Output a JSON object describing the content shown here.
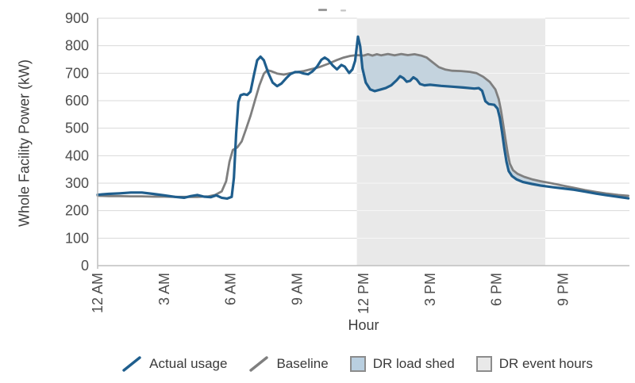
{
  "y_axis": {
    "title": "Whole Facility Power (kW)"
  },
  "x_axis": {
    "title": "Hour"
  },
  "legend": [
    {
      "label": "Actual usage",
      "swatch": "line",
      "color": "#1f5e8d"
    },
    {
      "label": "Baseline",
      "swatch": "line",
      "color": "#7f7f7f"
    },
    {
      "label": "DR load shed",
      "swatch": "square",
      "color": "#b9cfe0"
    },
    {
      "label": "DR event hours",
      "swatch": "square",
      "color": "#e9e9e9"
    }
  ],
  "colors": {
    "actual_line": "#1f5e8d",
    "baseline_line": "#7f7f7f",
    "load_shed_fill": "#c4d3de",
    "event_fill": "#e9e9e9",
    "gridline": "#d9d9d9",
    "gridline_on_event": "#f8f8f8",
    "axis_line": "#bfbfbf",
    "tick_text": "#4d4d4d",
    "legend_swatch_border": "#8c8c8c"
  },
  "chart_data": {
    "type": "line",
    "title": "",
    "xlabel": "Hour",
    "ylabel": "Whole Facility Power (kW)",
    "xlim": [
      0,
      24
    ],
    "ylim": [
      0,
      900
    ],
    "grid": "horizontal",
    "legend_position": "bottom",
    "y_ticks": [
      0,
      100,
      200,
      300,
      400,
      500,
      600,
      700,
      800,
      900
    ],
    "x_ticks": [
      {
        "h": 0,
        "label": "12 AM"
      },
      {
        "h": 3,
        "label": "3 AM"
      },
      {
        "h": 6,
        "label": "6 AM"
      },
      {
        "h": 9,
        "label": "9 AM"
      },
      {
        "h": 12,
        "label": "12 PM"
      },
      {
        "h": 15,
        "label": "3 PM"
      },
      {
        "h": 18,
        "label": "6 PM"
      },
      {
        "h": 21,
        "label": "9 PM"
      }
    ],
    "dr_event_hours": {
      "name": "DR event hours",
      "start_hour": 11.7,
      "end_hour": 20.2
    },
    "dr_load_shed": {
      "name": "DR load shed",
      "start_hour": 11.9,
      "end_hour": 20.2,
      "between": [
        "Baseline",
        "Actual usage"
      ]
    },
    "series": [
      {
        "name": "Actual usage",
        "color": "#1f5e8d",
        "width": 3.2,
        "points": [
          [
            0,
            258
          ],
          [
            0.5,
            261
          ],
          [
            1,
            263
          ],
          [
            1.5,
            266
          ],
          [
            2,
            266
          ],
          [
            2.5,
            261
          ],
          [
            3,
            256
          ],
          [
            3.5,
            250
          ],
          [
            3.9,
            247
          ],
          [
            4.2,
            253
          ],
          [
            4.5,
            257
          ],
          [
            4.8,
            251
          ],
          [
            5.1,
            249
          ],
          [
            5.35,
            256
          ],
          [
            5.6,
            247
          ],
          [
            5.85,
            244
          ],
          [
            6.05,
            250
          ],
          [
            6.15,
            320
          ],
          [
            6.25,
            480
          ],
          [
            6.35,
            595
          ],
          [
            6.45,
            620
          ],
          [
            6.6,
            624
          ],
          [
            6.75,
            621
          ],
          [
            6.9,
            633
          ],
          [
            7.05,
            692
          ],
          [
            7.2,
            747
          ],
          [
            7.35,
            760
          ],
          [
            7.5,
            747
          ],
          [
            7.7,
            701
          ],
          [
            7.9,
            666
          ],
          [
            8.1,
            653
          ],
          [
            8.3,
            663
          ],
          [
            8.5,
            681
          ],
          [
            8.7,
            697
          ],
          [
            8.9,
            704
          ],
          [
            9.1,
            704
          ],
          [
            9.3,
            699
          ],
          [
            9.5,
            696
          ],
          [
            9.7,
            707
          ],
          [
            9.9,
            724
          ],
          [
            10.1,
            749
          ],
          [
            10.25,
            757
          ],
          [
            10.4,
            749
          ],
          [
            10.6,
            729
          ],
          [
            10.8,
            714
          ],
          [
            11,
            730
          ],
          [
            11.15,
            724
          ],
          [
            11.35,
            701
          ],
          [
            11.5,
            714
          ],
          [
            11.62,
            745
          ],
          [
            11.75,
            833
          ],
          [
            11.85,
            798
          ],
          [
            11.95,
            718
          ],
          [
            12.1,
            666
          ],
          [
            12.3,
            641
          ],
          [
            12.5,
            635
          ],
          [
            12.75,
            640
          ],
          [
            13,
            646
          ],
          [
            13.25,
            656
          ],
          [
            13.5,
            675
          ],
          [
            13.65,
            689
          ],
          [
            13.8,
            682
          ],
          [
            13.95,
            669
          ],
          [
            14.1,
            672
          ],
          [
            14.25,
            685
          ],
          [
            14.4,
            677
          ],
          [
            14.55,
            661
          ],
          [
            14.75,
            656
          ],
          [
            15,
            658
          ],
          [
            15.5,
            654
          ],
          [
            16,
            651
          ],
          [
            16.5,
            648
          ],
          [
            17,
            644
          ],
          [
            17.2,
            646
          ],
          [
            17.35,
            636
          ],
          [
            17.5,
            598
          ],
          [
            17.65,
            588
          ],
          [
            17.9,
            585
          ],
          [
            18.05,
            571
          ],
          [
            18.15,
            538
          ],
          [
            18.25,
            486
          ],
          [
            18.35,
            428
          ],
          [
            18.45,
            378
          ],
          [
            18.55,
            344
          ],
          [
            18.7,
            326
          ],
          [
            18.9,
            314
          ],
          [
            19.2,
            304
          ],
          [
            19.6,
            297
          ],
          [
            20,
            291
          ],
          [
            20.5,
            286
          ],
          [
            21,
            281
          ],
          [
            21.5,
            276
          ],
          [
            22,
            269
          ],
          [
            22.5,
            262
          ],
          [
            23,
            256
          ],
          [
            23.5,
            250
          ],
          [
            23.95,
            245
          ]
        ]
      },
      {
        "name": "Baseline",
        "color": "#7f7f7f",
        "width": 2.8,
        "points": [
          [
            0,
            254
          ],
          [
            0.5,
            253
          ],
          [
            1,
            253
          ],
          [
            1.5,
            252
          ],
          [
            2,
            252
          ],
          [
            2.5,
            251
          ],
          [
            3,
            251
          ],
          [
            3.5,
            250
          ],
          [
            4,
            250
          ],
          [
            4.5,
            250
          ],
          [
            5,
            252
          ],
          [
            5.3,
            257
          ],
          [
            5.6,
            270
          ],
          [
            5.8,
            307
          ],
          [
            5.95,
            378
          ],
          [
            6.1,
            421
          ],
          [
            6.3,
            430
          ],
          [
            6.5,
            452
          ],
          [
            6.7,
            497
          ],
          [
            6.9,
            545
          ],
          [
            7.1,
            601
          ],
          [
            7.3,
            656
          ],
          [
            7.5,
            698
          ],
          [
            7.65,
            711
          ],
          [
            7.85,
            707
          ],
          [
            8.1,
            699
          ],
          [
            8.4,
            695
          ],
          [
            8.7,
            700
          ],
          [
            9,
            704
          ],
          [
            9.3,
            708
          ],
          [
            9.6,
            714
          ],
          [
            10,
            722
          ],
          [
            10.4,
            734
          ],
          [
            10.8,
            748
          ],
          [
            11.1,
            757
          ],
          [
            11.4,
            763
          ],
          [
            11.7,
            766
          ],
          [
            12,
            764
          ],
          [
            12.2,
            769
          ],
          [
            12.4,
            764
          ],
          [
            12.6,
            769
          ],
          [
            12.8,
            765
          ],
          [
            13.1,
            770
          ],
          [
            13.4,
            765
          ],
          [
            13.7,
            770
          ],
          [
            14,
            766
          ],
          [
            14.3,
            769
          ],
          [
            14.6,
            764
          ],
          [
            14.85,
            757
          ],
          [
            15.1,
            741
          ],
          [
            15.4,
            722
          ],
          [
            15.7,
            713
          ],
          [
            16,
            709
          ],
          [
            16.4,
            708
          ],
          [
            16.8,
            705
          ],
          [
            17.1,
            700
          ],
          [
            17.4,
            687
          ],
          [
            17.7,
            668
          ],
          [
            17.95,
            641
          ],
          [
            18.1,
            606
          ],
          [
            18.2,
            566
          ],
          [
            18.3,
            515
          ],
          [
            18.4,
            462
          ],
          [
            18.5,
            411
          ],
          [
            18.6,
            371
          ],
          [
            18.75,
            347
          ],
          [
            18.95,
            334
          ],
          [
            19.25,
            323
          ],
          [
            19.6,
            314
          ],
          [
            20,
            307
          ],
          [
            20.5,
            299
          ],
          [
            21,
            291
          ],
          [
            21.5,
            283
          ],
          [
            22,
            275
          ],
          [
            22.5,
            268
          ],
          [
            23,
            262
          ],
          [
            23.5,
            257
          ],
          [
            23.95,
            254
          ]
        ]
      }
    ]
  }
}
